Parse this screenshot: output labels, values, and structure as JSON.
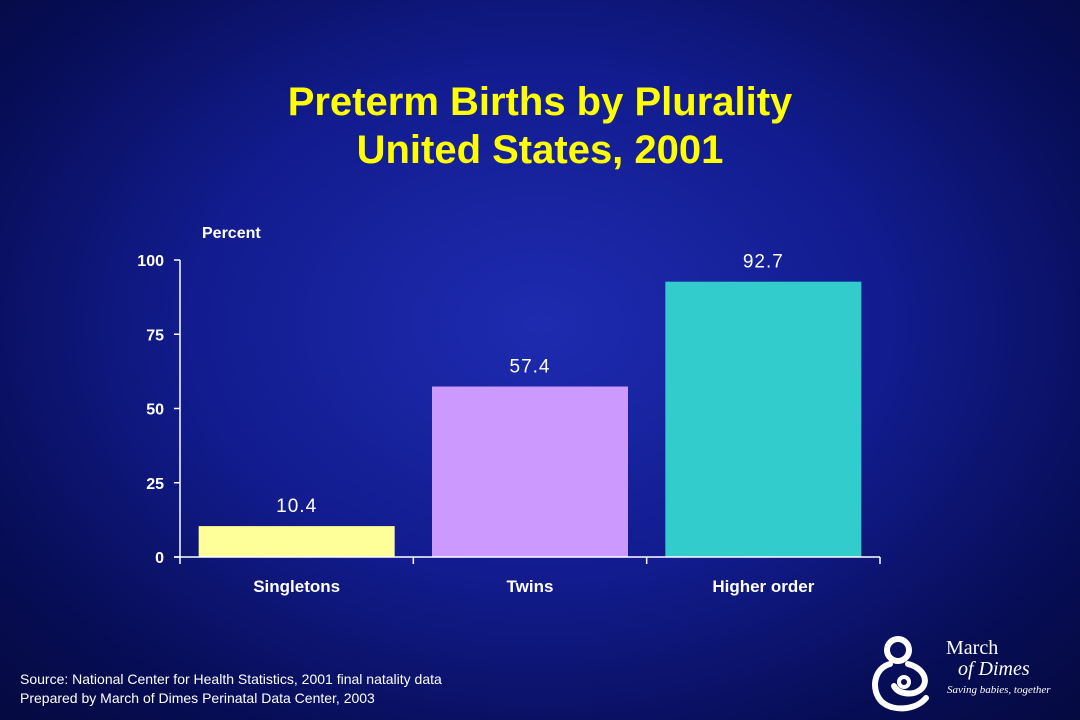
{
  "title": {
    "line1": "Preterm Births by Plurality",
    "line2": "United States, 2001"
  },
  "chart_data": {
    "type": "bar",
    "title": "Preterm Births by Plurality United States, 2001",
    "ylabel": "Percent",
    "xlabel": "",
    "categories": [
      "Singletons",
      "Twins",
      "Higher order"
    ],
    "values": [
      10.4,
      57.4,
      92.7
    ],
    "value_labels": [
      "10.4",
      "57.4",
      "92.7"
    ],
    "colors": [
      "#ffff99",
      "#cc99ff",
      "#33cccc"
    ],
    "ylim": [
      0,
      100
    ],
    "yticks": [
      0,
      25,
      50,
      75,
      100
    ],
    "grid": false,
    "legend": "none"
  },
  "source": {
    "line1": "Source: National Center for Health Statistics, 2001 final natality data",
    "line2": "Prepared by March of Dimes Perinatal Data Center, 2003"
  },
  "logo": {
    "name_line1": "March",
    "name_line2": "of Dimes",
    "tagline": "Saving babies, together"
  }
}
